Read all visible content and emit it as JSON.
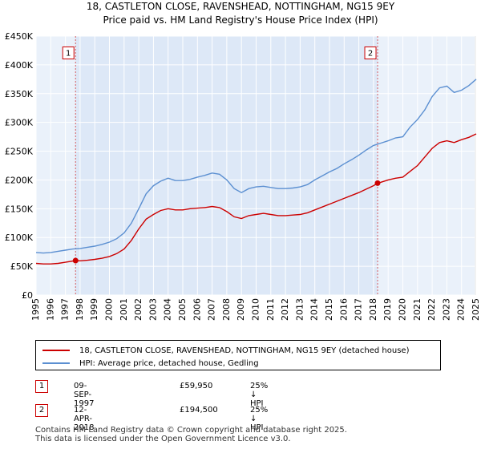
{
  "chart_data": {
    "type": "line",
    "title": "18, CASTLETON CLOSE, RAVENSHEAD, NOTTINGHAM, NG15 9EY",
    "subtitle": "Price paid vs. HM Land Registry's House Price Index (HPI)",
    "xlim": [
      1995,
      2025
    ],
    "ylim": [
      0,
      450000
    ],
    "xticks": [
      1995,
      1996,
      1997,
      1998,
      1999,
      2000,
      2001,
      2002,
      2003,
      2004,
      2005,
      2006,
      2007,
      2008,
      2009,
      2010,
      2011,
      2012,
      2013,
      2014,
      2015,
      2016,
      2017,
      2018,
      2019,
      2020,
      2021,
      2022,
      2023,
      2024,
      2025
    ],
    "yticks": [
      {
        "value": 0,
        "label": "£0"
      },
      {
        "value": 50000,
        "label": "£50K"
      },
      {
        "value": 100000,
        "label": "£100K"
      },
      {
        "value": 150000,
        "label": "£150K"
      },
      {
        "value": 200000,
        "label": "£200K"
      },
      {
        "value": 250000,
        "label": "£250K"
      },
      {
        "value": 300000,
        "label": "£300K"
      },
      {
        "value": 350000,
        "label": "£350K"
      },
      {
        "value": 400000,
        "label": "£400K"
      },
      {
        "value": 450000,
        "label": "£450K"
      }
    ],
    "shaded_period": [
      1997.69,
      2018.28
    ],
    "colors": {
      "property": "#cc0000",
      "hpi": "#5b8fd1",
      "shade": "#dde8f7"
    },
    "series": [
      {
        "name": "18, CASTLETON CLOSE, RAVENSHEAD, NOTTINGHAM, NG15 9EY (detached house)",
        "key": "property",
        "x": [
          1995,
          1995.5,
          1996,
          1996.5,
          1997,
          1997.69,
          1998,
          1998.5,
          1999,
          1999.5,
          2000,
          2000.5,
          2001,
          2001.5,
          2002,
          2002.5,
          2003,
          2003.5,
          2004,
          2004.5,
          2005,
          2005.5,
          2006,
          2006.5,
          2007,
          2007.5,
          2008,
          2008.5,
          2009,
          2009.5,
          2010,
          2010.5,
          2011,
          2011.5,
          2012,
          2012.5,
          2013,
          2013.5,
          2014,
          2014.5,
          2015,
          2015.5,
          2016,
          2016.5,
          2017,
          2017.5,
          2018,
          2018.28,
          2018.5,
          2019,
          2019.5,
          2020,
          2020.5,
          2021,
          2021.5,
          2022,
          2022.5,
          2023,
          2023.5,
          2024,
          2024.5,
          2025
        ],
        "values": [
          55000,
          54000,
          54000,
          55000,
          57000,
          59950,
          59500,
          60500,
          62000,
          64000,
          67000,
          72000,
          80000,
          95000,
          115000,
          132000,
          140000,
          147000,
          150000,
          148000,
          148000,
          150000,
          151000,
          152000,
          154000,
          152000,
          145000,
          136000,
          133000,
          138000,
          140000,
          142000,
          140000,
          138000,
          138000,
          139000,
          140000,
          143000,
          148000,
          153000,
          158000,
          163000,
          168000,
          173000,
          178000,
          184000,
          190000,
          194500,
          196000,
          200000,
          203000,
          205000,
          215000,
          225000,
          240000,
          255000,
          265000,
          268000,
          265000,
          270000,
          274000,
          280000
        ]
      },
      {
        "name": "HPI: Average price, detached house, Gedling",
        "key": "hpi",
        "x": [
          1995,
          1995.5,
          1996,
          1996.5,
          1997,
          1997.5,
          1998,
          1998.5,
          1999,
          1999.5,
          2000,
          2000.5,
          2001,
          2001.5,
          2002,
          2002.5,
          2003,
          2003.5,
          2004,
          2004.5,
          2005,
          2005.5,
          2006,
          2006.5,
          2007,
          2007.5,
          2008,
          2008.5,
          2009,
          2009.5,
          2010,
          2010.5,
          2011,
          2011.5,
          2012,
          2012.5,
          2013,
          2013.5,
          2014,
          2014.5,
          2015,
          2015.5,
          2016,
          2016.5,
          2017,
          2017.5,
          2018,
          2018.5,
          2019,
          2019.5,
          2020,
          2020.5,
          2021,
          2021.5,
          2022,
          2022.5,
          2023,
          2023.5,
          2024,
          2024.5,
          2025
        ],
        "values": [
          74000,
          73000,
          74000,
          76000,
          78000,
          80000,
          81000,
          83000,
          85000,
          88000,
          92000,
          98000,
          108000,
          125000,
          150000,
          176000,
          190000,
          198000,
          203000,
          199000,
          199000,
          201000,
          205000,
          208000,
          212000,
          210000,
          200000,
          185000,
          178000,
          185000,
          188000,
          189000,
          187000,
          185000,
          185000,
          186000,
          188000,
          192000,
          200000,
          207000,
          214000,
          220000,
          228000,
          235000,
          243000,
          252000,
          260000,
          264000,
          268000,
          273000,
          275000,
          292000,
          305000,
          322000,
          345000,
          360000,
          363000,
          352000,
          356000,
          364000,
          375000
        ]
      }
    ],
    "sales": [
      {
        "label": "1",
        "x": 1997.69,
        "price": 59950
      },
      {
        "label": "2",
        "x": 2018.28,
        "price": 194500
      }
    ]
  },
  "legend": {
    "property_label": "18, CASTLETON CLOSE, RAVENSHEAD, NOTTINGHAM, NG15 9EY (detached house)",
    "hpi_label": "HPI: Average price, detached house, Gedling"
  },
  "sales_table": [
    {
      "num": "1",
      "date": "09-SEP-1997",
      "price": "£59,950",
      "hpi": "25% ↓ HPI"
    },
    {
      "num": "2",
      "date": "12-APR-2018",
      "price": "£194,500",
      "hpi": "25% ↓ HPI"
    }
  ],
  "footer": {
    "line1": "Contains HM Land Registry data © Crown copyright and database right 2025.",
    "line2": "This data is licensed under the Open Government Licence v3.0."
  }
}
